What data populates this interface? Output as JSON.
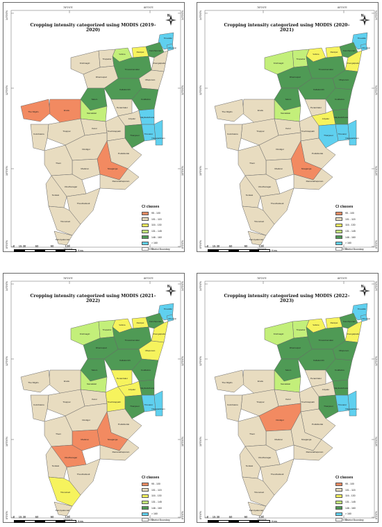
{
  "colors": {
    "95-100": "#f28a61",
    "101-115": "#e8dcc0",
    "116-130": "#f6f35d",
    "131-145": "#c3ef7a",
    "146-160": "#4f9a55",
    ">160": "#5fd0ef",
    "boundary": "#666666"
  },
  "legend": {
    "title": "CI classes",
    "items": [
      "95 - 100",
      "101 - 115",
      "116 - 130",
      "131 - 145",
      "146 - 160",
      "> 160",
      "District Boundary"
    ]
  },
  "scale": {
    "ticks": [
      "0",
      "15 30",
      "60",
      "90",
      "120"
    ],
    "unit": "Kms"
  },
  "coords": {
    "top": [
      "78°0'0\"E",
      "80°0'0\"E"
    ],
    "bottom": [
      "78°0'0\"E",
      "80°0'0\"E"
    ],
    "lat": [
      "14°0'0\"N",
      "12°0'0\"N",
      "10°0'0\"N",
      "8°0'0\"N"
    ]
  },
  "north_label": "N",
  "district_names": [
    "Tiruvallur",
    "Chennai",
    "Vellore",
    "Ranipet",
    "Kanchipuram",
    "Chengalpattu",
    "Tirupattur",
    "Krishnagiri",
    "Tiruvannamalai",
    "Villupuram",
    "Dharmapuri",
    "Salem",
    "Kallakurichi",
    "Namakkal",
    "Erode",
    "The Nilgiris",
    "Cuddalore",
    "Perambalur",
    "Ariyalur",
    "Karur",
    "Tiruppur",
    "Coimbatore",
    "Tiruchirappalli",
    "Thanjavur",
    "Tiruvarur",
    "Nagapattinam",
    "Mayiladuthurai",
    "Dindigul",
    "Pudukkottai",
    "Sivaganga",
    "Madurai",
    "Theni",
    "Virudhunagar",
    "Ramanathapuram",
    "Tenkasi",
    "Thoothukkudi",
    "Tirunelveli",
    "Kanniyakumari"
  ],
  "panels": [
    {
      "title": "Cropping intensity categorized using MODIS (2019–2020)",
      "classes": {
        "Tiruvallur": ">160",
        "Chennai": ">160",
        "Vellore": "131-145",
        "Ranipet": "116-130",
        "Kanchipuram": "146-160",
        "Chengalpattu": "101-115",
        "Tirupattur": "101-115",
        "Krishnagiri": "101-115",
        "Tiruvannamalai": "146-160",
        "Villupuram": "101-115",
        "Dharmapuri": "101-115",
        "Salem": "146-160",
        "Kallakurichi": "146-160",
        "Namakkal": "131-145",
        "Erode": "95-100",
        "The Nilgiris": "95-100",
        "Cuddalore": "146-160",
        "Perambalur": "101-115",
        "Ariyalur": "101-115",
        "Karur": "101-115",
        "Tiruppur": "101-115",
        "Coimbatore": "101-115",
        "Tiruchirappalli": "101-115",
        "Thanjavur": "146-160",
        "Tiruvarur": ">160",
        "Nagapattinam": ">160",
        "Mayiladuthurai": ">160",
        "Dindigul": "101-115",
        "Pudukkottai": "101-115",
        "Sivaganga": "95-100",
        "Madurai": "101-115",
        "Theni": "101-115",
        "Virudhunagar": "101-115",
        "Ramanathapuram": "101-115",
        "Tenkasi": "101-115",
        "Thoothukkudi": "101-115",
        "Tirunelveli": "101-115",
        "Kanniyakumari": "101-115"
      }
    },
    {
      "title": "Cropping intensity categorized using MODIS (2020–2021)",
      "classes": {
        "Tiruvallur": ">160",
        "Chennai": ">160",
        "Vellore": "116-130",
        "Ranipet": "116-130",
        "Kanchipuram": "146-160",
        "Chengalpattu": "116-130",
        "Tirupattur": "131-145",
        "Krishnagiri": "131-145",
        "Tiruvannamalai": "146-160",
        "Villupuram": "146-160",
        "Dharmapuri": "146-160",
        "Salem": "146-160",
        "Kallakurichi": "146-160",
        "Namakkal": "131-145",
        "Erode": "101-115",
        "The Nilgiris": "101-115",
        "Cuddalore": "146-160",
        "Perambalur": "101-115",
        "Ariyalur": "116-130",
        "Karur": "101-115",
        "Tiruppur": "101-115",
        "Coimbatore": "101-115",
        "Tiruchirappalli": "101-115",
        "Thanjavur": ">160",
        "Tiruvarur": ">160",
        "Nagapattinam": ">160",
        "Mayiladuthurai": "146-160",
        "Dindigul": "101-115",
        "Pudukkottai": "101-115",
        "Sivaganga": "95-100",
        "Madurai": "101-115",
        "Theni": "101-115",
        "Virudhunagar": "101-115",
        "Ramanathapuram": "101-115",
        "Tenkasi": "101-115",
        "Thoothukkudi": "101-115",
        "Tirunelveli": "101-115",
        "Kanniyakumari": "101-115"
      }
    },
    {
      "title": "Cropping intensity categorized using MODIS (2021–2022)",
      "classes": {
        "Tiruvallur": ">160",
        "Chennai": ">160",
        "Vellore": "116-130",
        "Ranipet": "116-130",
        "Kanchipuram": "146-160",
        "Chengalpattu": "116-130",
        "Tirupattur": "131-145",
        "Krishnagiri": "131-145",
        "Tiruvannamalai": "146-160",
        "Villupuram": "116-130",
        "Dharmapuri": "146-160",
        "Salem": "146-160",
        "Kallakurichi": "146-160",
        "Namakkal": "131-145",
        "Erode": "101-115",
        "The Nilgiris": "101-115",
        "Cuddalore": "146-160",
        "Perambalur": "116-130",
        "Ariyalur": "116-130",
        "Karur": "101-115",
        "Tiruppur": "101-115",
        "Coimbatore": "101-115",
        "Tiruchirappalli": "116-130",
        "Thanjavur": "146-160",
        "Tiruvarur": ">160",
        "Nagapattinam": ">160",
        "Mayiladuthurai": "146-160",
        "Dindigul": "101-115",
        "Pudukkottai": "101-115",
        "Sivaganga": "95-100",
        "Madurai": "95-100",
        "Theni": "101-115",
        "Virudhunagar": "95-100",
        "Ramanathapuram": "101-115",
        "Tenkasi": "101-115",
        "Thoothukkudi": "101-115",
        "Tirunelveli": "116-130",
        "Kanniyakumari": "101-115"
      }
    },
    {
      "title": "Cropping intensity categorized using MODIS (2022–2023)",
      "classes": {
        "Tiruvallur": ">160",
        "Chennai": ">160",
        "Vellore": "116-130",
        "Ranipet": "116-130",
        "Kanchipuram": "146-160",
        "Chengalpattu": "116-130",
        "Tirupattur": "131-145",
        "Krishnagiri": "131-145",
        "Tiruvannamalai": "146-160",
        "Villupuram": "146-160",
        "Dharmapuri": "146-160",
        "Salem": "146-160",
        "Kallakurichi": "146-160",
        "Namakkal": "131-145",
        "Erode": "101-115",
        "The Nilgiris": "101-115",
        "Cuddalore": "146-160",
        "Perambalur": "101-115",
        "Ariyalur": "101-115",
        "Karur": "101-115",
        "Tiruppur": "101-115",
        "Coimbatore": "101-115",
        "Tiruchirappalli": "101-115",
        "Thanjavur": "146-160",
        "Tiruvarur": ">160",
        "Nagapattinam": ">160",
        "Mayiladuthurai": "146-160",
        "Dindigul": "95-100",
        "Pudukkottai": "101-115",
        "Sivaganga": "101-115",
        "Madurai": "101-115",
        "Theni": "101-115",
        "Virudhunagar": "101-115",
        "Ramanathapuram": "101-115",
        "Tenkasi": "101-115",
        "Thoothukkudi": "101-115",
        "Tirunelveli": "101-115",
        "Kanniyakumari": "101-115"
      }
    }
  ]
}
